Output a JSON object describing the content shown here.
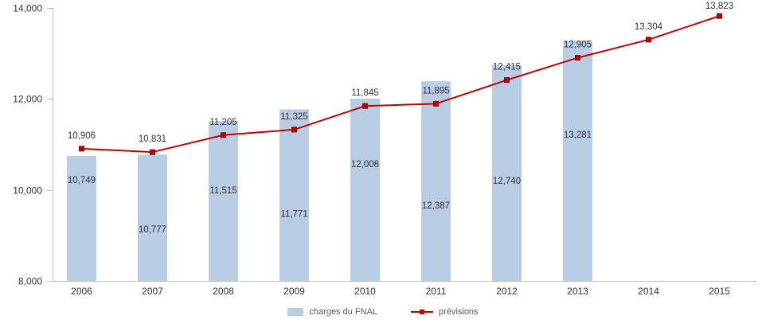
{
  "chart_data": {
    "type": "combo",
    "title": "",
    "categories": [
      "2006",
      "2007",
      "2008",
      "2009",
      "2010",
      "2011",
      "2012",
      "2013",
      "2014",
      "2015"
    ],
    "series": [
      {
        "name": "charges du FNAL",
        "type": "bar",
        "color": "#b8cce4",
        "values": [
          10749,
          10777,
          11515,
          11771,
          12008,
          12387,
          12740,
          13281,
          null,
          null
        ]
      },
      {
        "name": "prévisions",
        "type": "line",
        "color": "#c00000",
        "marker": "square",
        "values": [
          10906,
          10831,
          11205,
          11325,
          11845,
          11895,
          12415,
          12905,
          13304,
          13823
        ]
      }
    ],
    "ylim": [
      8000,
      14000
    ],
    "yticks": [
      8000,
      10000,
      12000,
      14000
    ],
    "ytick_labels": [
      "8,000",
      "10,000",
      "12,000",
      "14,000"
    ],
    "grid": false,
    "data_labels": true,
    "legend_position": "bottom",
    "colors": {
      "axis": "#bfbfbf",
      "text": "#333333",
      "legend_text": "#595959",
      "background": "#ffffff"
    },
    "layout": {
      "bar_label_dy": [
        30,
        94,
        87,
        131,
        82,
        156,
        145,
        118
      ]
    }
  }
}
